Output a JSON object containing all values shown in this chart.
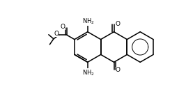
{
  "bg_color": "#ffffff",
  "line_color": "#000000",
  "line_width": 1.1,
  "font_size": 6.5,
  "figsize": [
    2.67,
    1.35
  ],
  "dpi": 100,
  "xlim": [
    0,
    10
  ],
  "ylim": [
    0,
    5
  ]
}
